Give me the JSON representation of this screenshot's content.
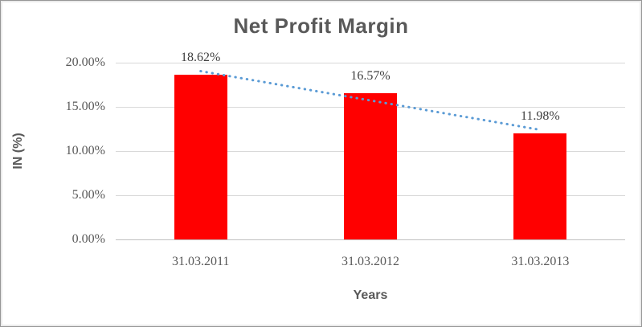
{
  "chart_data": {
    "type": "bar",
    "title": "Net Profit Margin",
    "xlabel": "Years",
    "ylabel": "IN (%)",
    "categories": [
      "31.03.2011",
      "31.03.2012",
      "31.03.2013"
    ],
    "values": [
      18.62,
      16.57,
      11.98
    ],
    "data_labels": [
      "18.62%",
      "16.57%",
      "11.98%"
    ],
    "yticks": [
      {
        "value": 20,
        "label": "20.00%"
      },
      {
        "value": 15,
        "label": "15.00%"
      },
      {
        "value": 10,
        "label": "10.00%"
      },
      {
        "value": 5,
        "label": "5.00%"
      },
      {
        "value": 0,
        "label": "0.00%"
      }
    ],
    "ylim": [
      0,
      20
    ],
    "grid": true,
    "legend": "none",
    "bar_color": "#FF0000",
    "trendline": {
      "type": "linear",
      "style": "round-dot",
      "color": "#5B9BD5"
    },
    "colors": {
      "title": "#595959",
      "axis_title": "#595959",
      "tick_label": "#595959",
      "data_label": "#3F3F3F",
      "gridline": "#D9D9D9",
      "axis_line": "#BFBFBF",
      "background": "#FFFFFF",
      "frame_border": "#969696"
    }
  }
}
